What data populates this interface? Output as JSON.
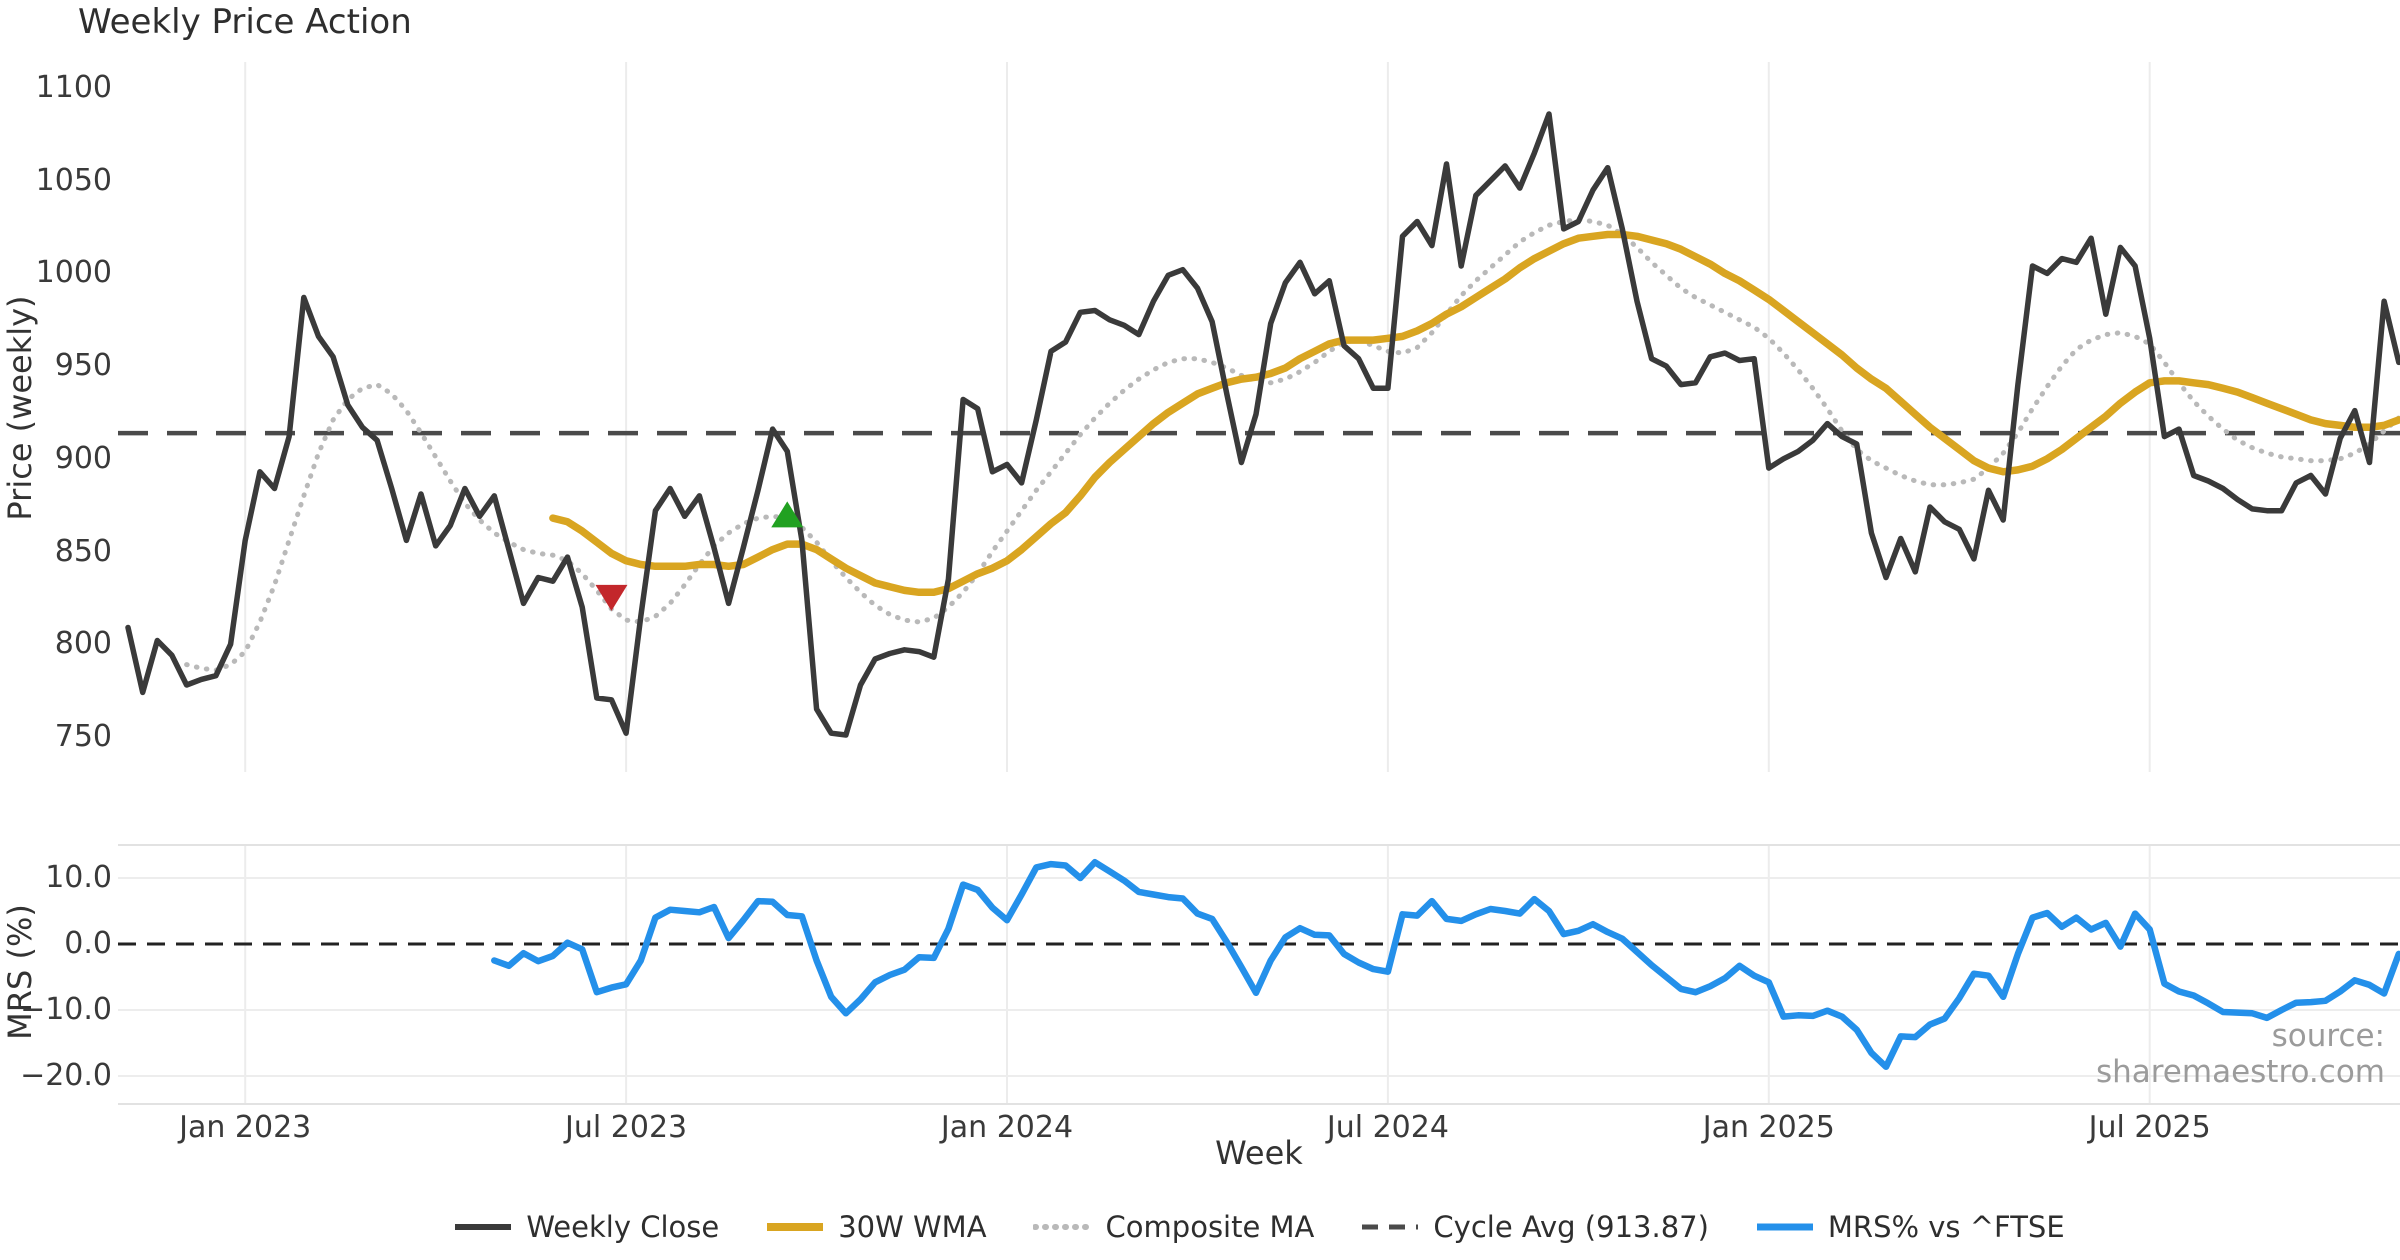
{
  "chart_data": {
    "type": "line",
    "title": "Weekly Price Action",
    "xlabel": "Week",
    "source": "source: sharemaestro.com",
    "xticks": [
      {
        "label": "Jan 2023",
        "week": 8
      },
      {
        "label": "Jul 2023",
        "week": 34
      },
      {
        "label": "Jan 2024",
        "week": 60
      },
      {
        "label": "Jul 2024",
        "week": 86
      },
      {
        "label": "Jan 2025",
        "week": 112
      },
      {
        "label": "Jul 2025",
        "week": 138
      }
    ],
    "top_panel": {
      "ylabel": "Price (weekly)",
      "ylim": [
        740,
        1113
      ],
      "yticks": [
        1100,
        1050,
        1000,
        950,
        900,
        850,
        800,
        750
      ],
      "cycle_avg": 913.87,
      "series": [
        {
          "name": "Weekly Close",
          "color": "#3a3a3a",
          "style": "solid",
          "start_week": 0,
          "values": [
            809,
            774,
            802,
            794,
            778,
            781,
            783,
            800,
            856,
            893,
            884,
            912,
            987,
            966,
            955,
            929,
            917,
            910,
            884,
            856,
            881,
            853,
            864,
            884,
            869,
            880,
            851,
            822,
            836,
            834,
            847,
            820,
            771,
            770,
            752,
            815,
            872,
            884,
            869,
            880,
            852,
            822,
            852,
            883,
            916,
            904,
            856,
            765,
            752,
            751,
            778,
            792,
            795,
            797,
            796,
            793,
            835,
            932,
            927,
            893,
            897,
            887,
            921,
            958,
            963,
            979,
            980,
            975,
            972,
            967,
            985,
            999,
            1002,
            992,
            974,
            935,
            898,
            924,
            973,
            995,
            1006,
            989,
            996,
            961,
            954,
            938,
            938,
            1020,
            1028,
            1015,
            1059,
            1004,
            1042,
            1050,
            1058,
            1046,
            1065,
            1086,
            1024,
            1028,
            1045,
            1057,
            1024,
            985,
            954,
            950,
            940,
            941,
            955,
            957,
            953,
            954,
            895,
            900,
            904,
            910,
            919,
            912,
            908,
            860,
            836,
            857,
            839,
            874,
            866,
            862,
            846,
            883,
            867,
            940,
            1004,
            1000,
            1008,
            1006,
            1019,
            978,
            1014,
            1004,
            965,
            912,
            916,
            891,
            888,
            884,
            878,
            873,
            872,
            872,
            887,
            891,
            881,
            911,
            926,
            898,
            985,
            952
          ]
        },
        {
          "name": "30W WMA",
          "color": "#d9a521",
          "style": "solid",
          "start_week": 29,
          "values": [
            868,
            866,
            861,
            855,
            849,
            845,
            843,
            842,
            842,
            842,
            843,
            843,
            842,
            843,
            847,
            851,
            854,
            854,
            851,
            846,
            841,
            837,
            833,
            831,
            829,
            828,
            828,
            830,
            834,
            838,
            841,
            845,
            851,
            858,
            865,
            871,
            880,
            890,
            898,
            905,
            912,
            919,
            925,
            930,
            935,
            938,
            941,
            943,
            944,
            946,
            949,
            954,
            958,
            962,
            964,
            964,
            964,
            965,
            966,
            969,
            973,
            978,
            982,
            987,
            992,
            997,
            1003,
            1008,
            1012,
            1016,
            1019,
            1020,
            1021,
            1021,
            1020,
            1018,
            1016,
            1013,
            1009,
            1005,
            1000,
            996,
            991,
            986,
            980,
            974,
            968,
            962,
            956,
            949,
            943,
            938,
            931,
            924,
            917,
            911,
            905,
            899,
            895,
            893,
            894,
            896,
            900,
            905,
            911,
            917,
            923,
            930,
            936,
            941,
            942,
            942,
            941,
            940,
            938,
            936,
            933,
            930,
            927,
            924,
            921,
            919,
            918,
            917,
            917,
            918,
            921
          ]
        },
        {
          "name": "Composite MA",
          "color": "#b9b9b9",
          "style": "dotted",
          "start_week": 4,
          "values": [
            789,
            787,
            786,
            789,
            796,
            812,
            832,
            856,
            880,
            903,
            921,
            932,
            938,
            940,
            935,
            926,
            914,
            901,
            888,
            876,
            867,
            860,
            855,
            851,
            849,
            848,
            845,
            838,
            829,
            819,
            813,
            812,
            815,
            822,
            832,
            843,
            853,
            860,
            865,
            868,
            869,
            868,
            863,
            855,
            845,
            836,
            828,
            821,
            816,
            813,
            812,
            814,
            820,
            828,
            838,
            850,
            861,
            872,
            883,
            893,
            903,
            913,
            922,
            930,
            937,
            943,
            948,
            952,
            954,
            954,
            952,
            949,
            945,
            942,
            941,
            943,
            947,
            952,
            958,
            963,
            964,
            961,
            958,
            957,
            960,
            968,
            978,
            988,
            996,
            1003,
            1010,
            1017,
            1022,
            1026,
            1028,
            1029,
            1028,
            1026,
            1021,
            1014,
            1006,
            999,
            992,
            987,
            983,
            979,
            975,
            971,
            965,
            957,
            948,
            938,
            927,
            915,
            905,
            899,
            895,
            891,
            888,
            886,
            886,
            887,
            889,
            895,
            903,
            914,
            927,
            939,
            950,
            959,
            964,
            967,
            968,
            966,
            962,
            952,
            941,
            931,
            923,
            916,
            910,
            906,
            903,
            901,
            900,
            899,
            899,
            900,
            903,
            908,
            915,
            922
          ]
        },
        {
          "name": "Cycle Avg (913.87)",
          "color": "#4a4a4a",
          "style": "dashed",
          "value": 913.87
        }
      ],
      "markers": [
        {
          "type": "sell-signal",
          "shape": "triangle-down",
          "color": "#c3272b",
          "week": 33,
          "price": 825
        },
        {
          "type": "buy-signal",
          "shape": "triangle-up",
          "color": "#21a121",
          "week": 45,
          "price": 870
        }
      ]
    },
    "bottom_panel": {
      "ylabel": "MRS (%)",
      "ylim": [
        -21.5,
        15
      ],
      "yticks": [
        10.0,
        0.0,
        -10.0,
        -20.0
      ],
      "zero_line_style": "dashed",
      "series": [
        {
          "name": "MRS% vs ^FTSE",
          "color": "#2490ea",
          "style": "solid",
          "start_week": 25,
          "values": [
            -2.5,
            -3.3,
            -1.4,
            -2.6,
            -1.8,
            0.2,
            -0.8,
            -7.3,
            -6.6,
            -6.1,
            -2.5,
            4.0,
            5.2,
            5.0,
            4.8,
            5.6,
            0.9,
            3.6,
            6.5,
            6.4,
            4.4,
            4.2,
            -2.5,
            -8.0,
            -10.5,
            -8.4,
            -5.8,
            -4.7,
            -3.9,
            -2.0,
            -2.1,
            2.3,
            9.0,
            8.2,
            5.5,
            3.6,
            7.5,
            11.6,
            12.1,
            11.9,
            10.0,
            12.4,
            11.0,
            9.6,
            7.9,
            7.5,
            7.1,
            6.9,
            4.6,
            3.8,
            0.3,
            -3.5,
            -7.4,
            -2.5,
            1.0,
            2.4,
            1.4,
            1.3,
            -1.5,
            -2.8,
            -3.8,
            -4.2,
            4.5,
            4.3,
            6.5,
            3.8,
            3.5,
            4.5,
            5.3,
            5.0,
            4.6,
            6.8,
            5.0,
            1.5,
            2.0,
            3.0,
            1.8,
            0.8,
            -1.2,
            -3.2,
            -5.0,
            -6.8,
            -7.3,
            -6.4,
            -5.2,
            -3.3,
            -4.8,
            -5.8,
            -11.0,
            -10.8,
            -10.9,
            -10.1,
            -11.0,
            -13.0,
            -16.5,
            -18.6,
            -14.0,
            -14.1,
            -12.2,
            -11.3,
            -8.2,
            -4.5,
            -4.8,
            -8.0,
            -1.5,
            4.0,
            4.7,
            2.6,
            4.0,
            2.2,
            3.2,
            -0.4,
            4.6,
            2.2,
            -6.0,
            -7.2,
            -7.8,
            -9.0,
            -10.3,
            -10.4,
            -10.5,
            -11.2,
            -10.0,
            -8.9,
            -8.8,
            -8.6,
            -7.2,
            -5.5,
            -6.2,
            -7.5,
            -1.5
          ]
        }
      ]
    },
    "legend": [
      {
        "label": "Weekly Close",
        "color": "#3a3a3a",
        "style": "solid",
        "lw": 6
      },
      {
        "label": "30W WMA",
        "color": "#d9a521",
        "style": "solid",
        "lw": 8
      },
      {
        "label": "Composite MA",
        "color": "#b9b9b9",
        "style": "dotted",
        "lw": 6
      },
      {
        "label": "Cycle Avg (913.87)",
        "color": "#4a4a4a",
        "style": "dashed",
        "lw": 5
      },
      {
        "label": "MRS% vs ^FTSE",
        "color": "#2490ea",
        "style": "solid",
        "lw": 7
      }
    ]
  }
}
